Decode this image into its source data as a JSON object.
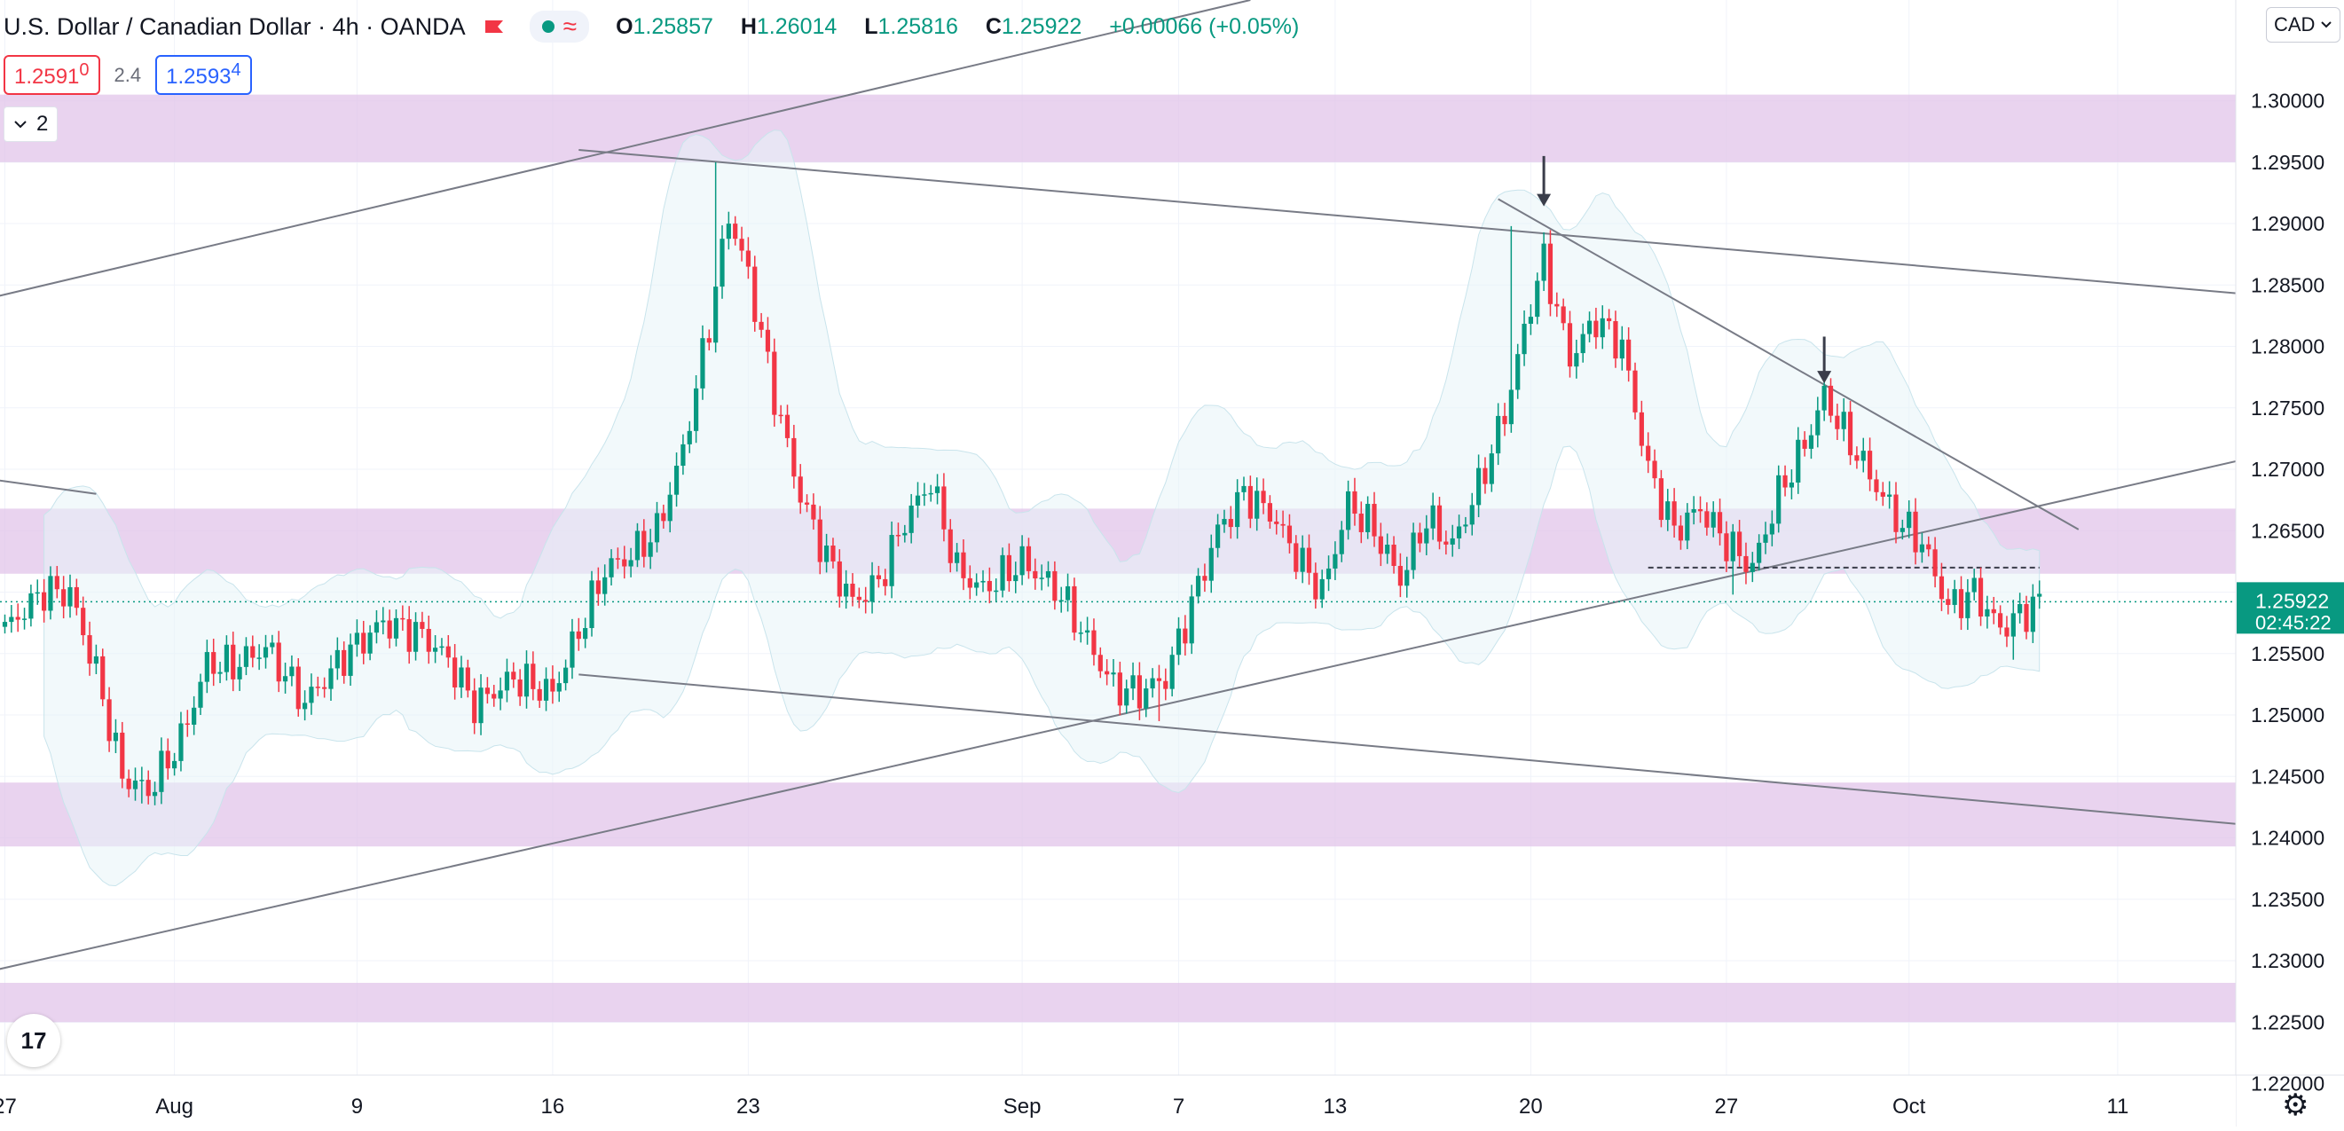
{
  "header": {
    "title": "U.S. Dollar / Canadian Dollar · 4h · OANDA",
    "ohlc": {
      "open_label": "O",
      "open": "1.25857",
      "high_label": "H",
      "high": "1.26014",
      "low_label": "L",
      "low": "1.25816",
      "close_label": "C",
      "close": "1.25922",
      "change": "+0.00066 (+0.05%)"
    },
    "sell_main": "1.2591",
    "sell_small": "0",
    "spread": "2.4",
    "buy_main": "1.2593",
    "buy_small": "4",
    "collapse_count": "2",
    "currency": "CAD",
    "logo": "17"
  },
  "colors": {
    "up": "#089981",
    "down": "#f23645",
    "zone": "#e1c4e9",
    "band": "#e8f4f8",
    "trend": "#787b86"
  },
  "icons": [
    "flag-icon",
    "status-dot-icon",
    "wave-icon",
    "chevron-down-icon",
    "tradingview-logo-icon",
    "gear-icon",
    "arrow-down-icon"
  ],
  "chart_data": {
    "type": "candlestick",
    "symbol": "USD/CAD",
    "timeframe": "4h",
    "source": "OANDA",
    "price_axis": {
      "min": 1.2165,
      "max": 1.3082,
      "ticks": [
        "1.30000",
        "1.29500",
        "1.29000",
        "1.28500",
        "1.28000",
        "1.27500",
        "1.27000",
        "1.26500",
        "1.26000",
        "1.25500",
        "1.25000",
        "1.24500",
        "1.24000",
        "1.23500",
        "1.23000",
        "1.22500",
        "1.22000"
      ],
      "current_price": "1.25922",
      "countdown": "02:45:22"
    },
    "time_axis": {
      "first_label_bar": 0,
      "labels": [
        {
          "label": "27",
          "bar": 0
        },
        {
          "label": "Aug",
          "bar": 26
        },
        {
          "label": "9",
          "bar": 54
        },
        {
          "label": "16",
          "bar": 84
        },
        {
          "label": "23",
          "bar": 114
        },
        {
          "label": "Sep",
          "bar": 156
        },
        {
          "label": "7",
          "bar": 180
        },
        {
          "label": "13",
          "bar": 204
        },
        {
          "label": "20",
          "bar": 234
        },
        {
          "label": "27",
          "bar": 264
        },
        {
          "label": "Oct",
          "bar": 292
        },
        {
          "label": "11",
          "bar": 324
        }
      ],
      "bars_visible": 346
    },
    "zones": [
      {
        "from": 1.295,
        "to": 1.3005
      },
      {
        "from": 1.2615,
        "to": 1.2668
      },
      {
        "from": 1.2393,
        "to": 1.2445
      },
      {
        "from": 1.225,
        "to": 1.2282
      }
    ],
    "trendlines": [
      {
        "bar1": -1,
        "p1": 1.2841,
        "bar2": 191,
        "p2": 1.3082
      },
      {
        "bar1": 88,
        "p1": 1.296,
        "bar2": 345,
        "p2": 1.2842
      },
      {
        "bar1": -1,
        "p1": 1.2293,
        "bar2": 345,
        "p2": 1.271
      },
      {
        "bar1": 88,
        "p1": 1.2533,
        "bar2": 345,
        "p2": 1.241
      },
      {
        "bar1": 229,
        "p1": 1.292,
        "bar2": 318,
        "p2": 1.2651
      },
      {
        "bar1": -1,
        "p1": 1.2691,
        "bar2": 14,
        "p2": 1.268
      }
    ],
    "dashed_level": {
      "price": 1.262,
      "bar1": 252,
      "bar2": 312
    },
    "arrows": [
      {
        "bar": 236,
        "top": 1.2955,
        "bottom": 1.2914
      },
      {
        "bar": 279,
        "top": 1.2808,
        "bottom": 1.277
      }
    ],
    "anchors": [
      [
        0,
        1.257
      ],
      [
        6,
        1.2601
      ],
      [
        10,
        1.2599
      ],
      [
        14,
        1.2535
      ],
      [
        18,
        1.245
      ],
      [
        22,
        1.2438
      ],
      [
        27,
        1.248
      ],
      [
        31,
        1.2542
      ],
      [
        35,
        1.254
      ],
      [
        40,
        1.2555
      ],
      [
        46,
        1.251
      ],
      [
        52,
        1.2548
      ],
      [
        58,
        1.2575
      ],
      [
        64,
        1.2565
      ],
      [
        68,
        1.2545
      ],
      [
        72,
        1.2508
      ],
      [
        78,
        1.253
      ],
      [
        84,
        1.2518
      ],
      [
        88,
        1.2568
      ],
      [
        92,
        1.2618
      ],
      [
        96,
        1.263
      ],
      [
        100,
        1.265
      ],
      [
        104,
        1.2715
      ],
      [
        108,
        1.2818
      ],
      [
        111,
        1.2907
      ],
      [
        114,
        1.2858
      ],
      [
        118,
        1.276
      ],
      [
        122,
        1.2678
      ],
      [
        126,
        1.2628
      ],
      [
        130,
        1.2592
      ],
      [
        134,
        1.2608
      ],
      [
        138,
        1.2658
      ],
      [
        142,
        1.269
      ],
      [
        146,
        1.2618
      ],
      [
        150,
        1.2602
      ],
      [
        156,
        1.2625
      ],
      [
        162,
        1.2598
      ],
      [
        166,
        1.256
      ],
      [
        170,
        1.2523
      ],
      [
        174,
        1.2518
      ],
      [
        178,
        1.253
      ],
      [
        182,
        1.259
      ],
      [
        186,
        1.265
      ],
      [
        190,
        1.268
      ],
      [
        194,
        1.2665
      ],
      [
        198,
        1.263
      ],
      [
        202,
        1.26
      ],
      [
        206,
        1.2672
      ],
      [
        210,
        1.265
      ],
      [
        214,
        1.261
      ],
      [
        218,
        1.266
      ],
      [
        222,
        1.2638
      ],
      [
        226,
        1.2686
      ],
      [
        230,
        1.2745
      ],
      [
        234,
        1.2835
      ],
      [
        236,
        1.287
      ],
      [
        240,
        1.279
      ],
      [
        244,
        1.2822
      ],
      [
        248,
        1.28
      ],
      [
        252,
        1.27
      ],
      [
        256,
        1.265
      ],
      [
        260,
        1.2668
      ],
      [
        264,
        1.264
      ],
      [
        268,
        1.262
      ],
      [
        272,
        1.268
      ],
      [
        276,
        1.272
      ],
      [
        279,
        1.276
      ],
      [
        282,
        1.273
      ],
      [
        286,
        1.2695
      ],
      [
        290,
        1.266
      ],
      [
        294,
        1.264
      ],
      [
        298,
        1.2588
      ],
      [
        302,
        1.26
      ],
      [
        306,
        1.257
      ],
      [
        312,
        1.2592
      ]
    ],
    "extremes": [
      {
        "bar": 109,
        "high": 1.295
      },
      {
        "bar": 231,
        "high": 1.2898
      },
      {
        "bar": 279,
        "high": 1.2775
      },
      {
        "bar": 21,
        "low": 1.2428
      },
      {
        "bar": 177,
        "low": 1.2495
      },
      {
        "bar": 265,
        "low": 1.2598
      },
      {
        "bar": 308,
        "low": 1.2545
      }
    ]
  }
}
